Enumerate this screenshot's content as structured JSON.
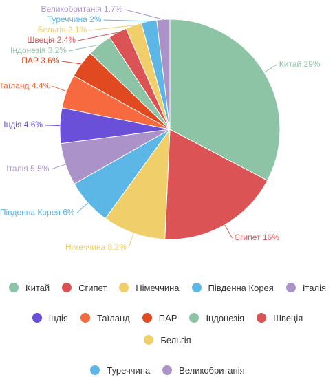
{
  "chart_data": {
    "type": "pie",
    "categories": [
      "Китай",
      "Єгипет",
      "Німеччина",
      "Південна Корея",
      "Італія",
      "Індія",
      "Таїланд",
      "ПАР",
      "Індонезія",
      "Швеція",
      "Бельгія",
      "Туреччина",
      "Великобританія"
    ],
    "values": [
      29,
      16,
      8.2,
      6,
      5.5,
      4.6,
      4.4,
      3.6,
      3.2,
      2.4,
      2.1,
      2,
      1.7
    ],
    "value_labels": [
      "Китай 29%",
      "Єгипет 16%",
      "Німеччина 8.2%",
      "Південна Корея 6%",
      "Італія 5.5%",
      "Індія 4.6%",
      "Таїланд 4.4%",
      "ПАР 3.6%",
      "Індонезія 3.2%",
      "Швеція 2.4%",
      "Бельгія 2.1%",
      "Туреччина 2%",
      "Великобританія 1.7%"
    ],
    "colors": [
      "#8ec4a6",
      "#dc5356",
      "#f0cf6a",
      "#5cb6e6",
      "#ab93c9",
      "#6a4fd9",
      "#f7693f",
      "#e14a20",
      "#8ec4a6",
      "#dc5356",
      "#f0cf6a",
      "#5cb6e6",
      "#ab93c9"
    ],
    "legend_position": "bottom"
  }
}
